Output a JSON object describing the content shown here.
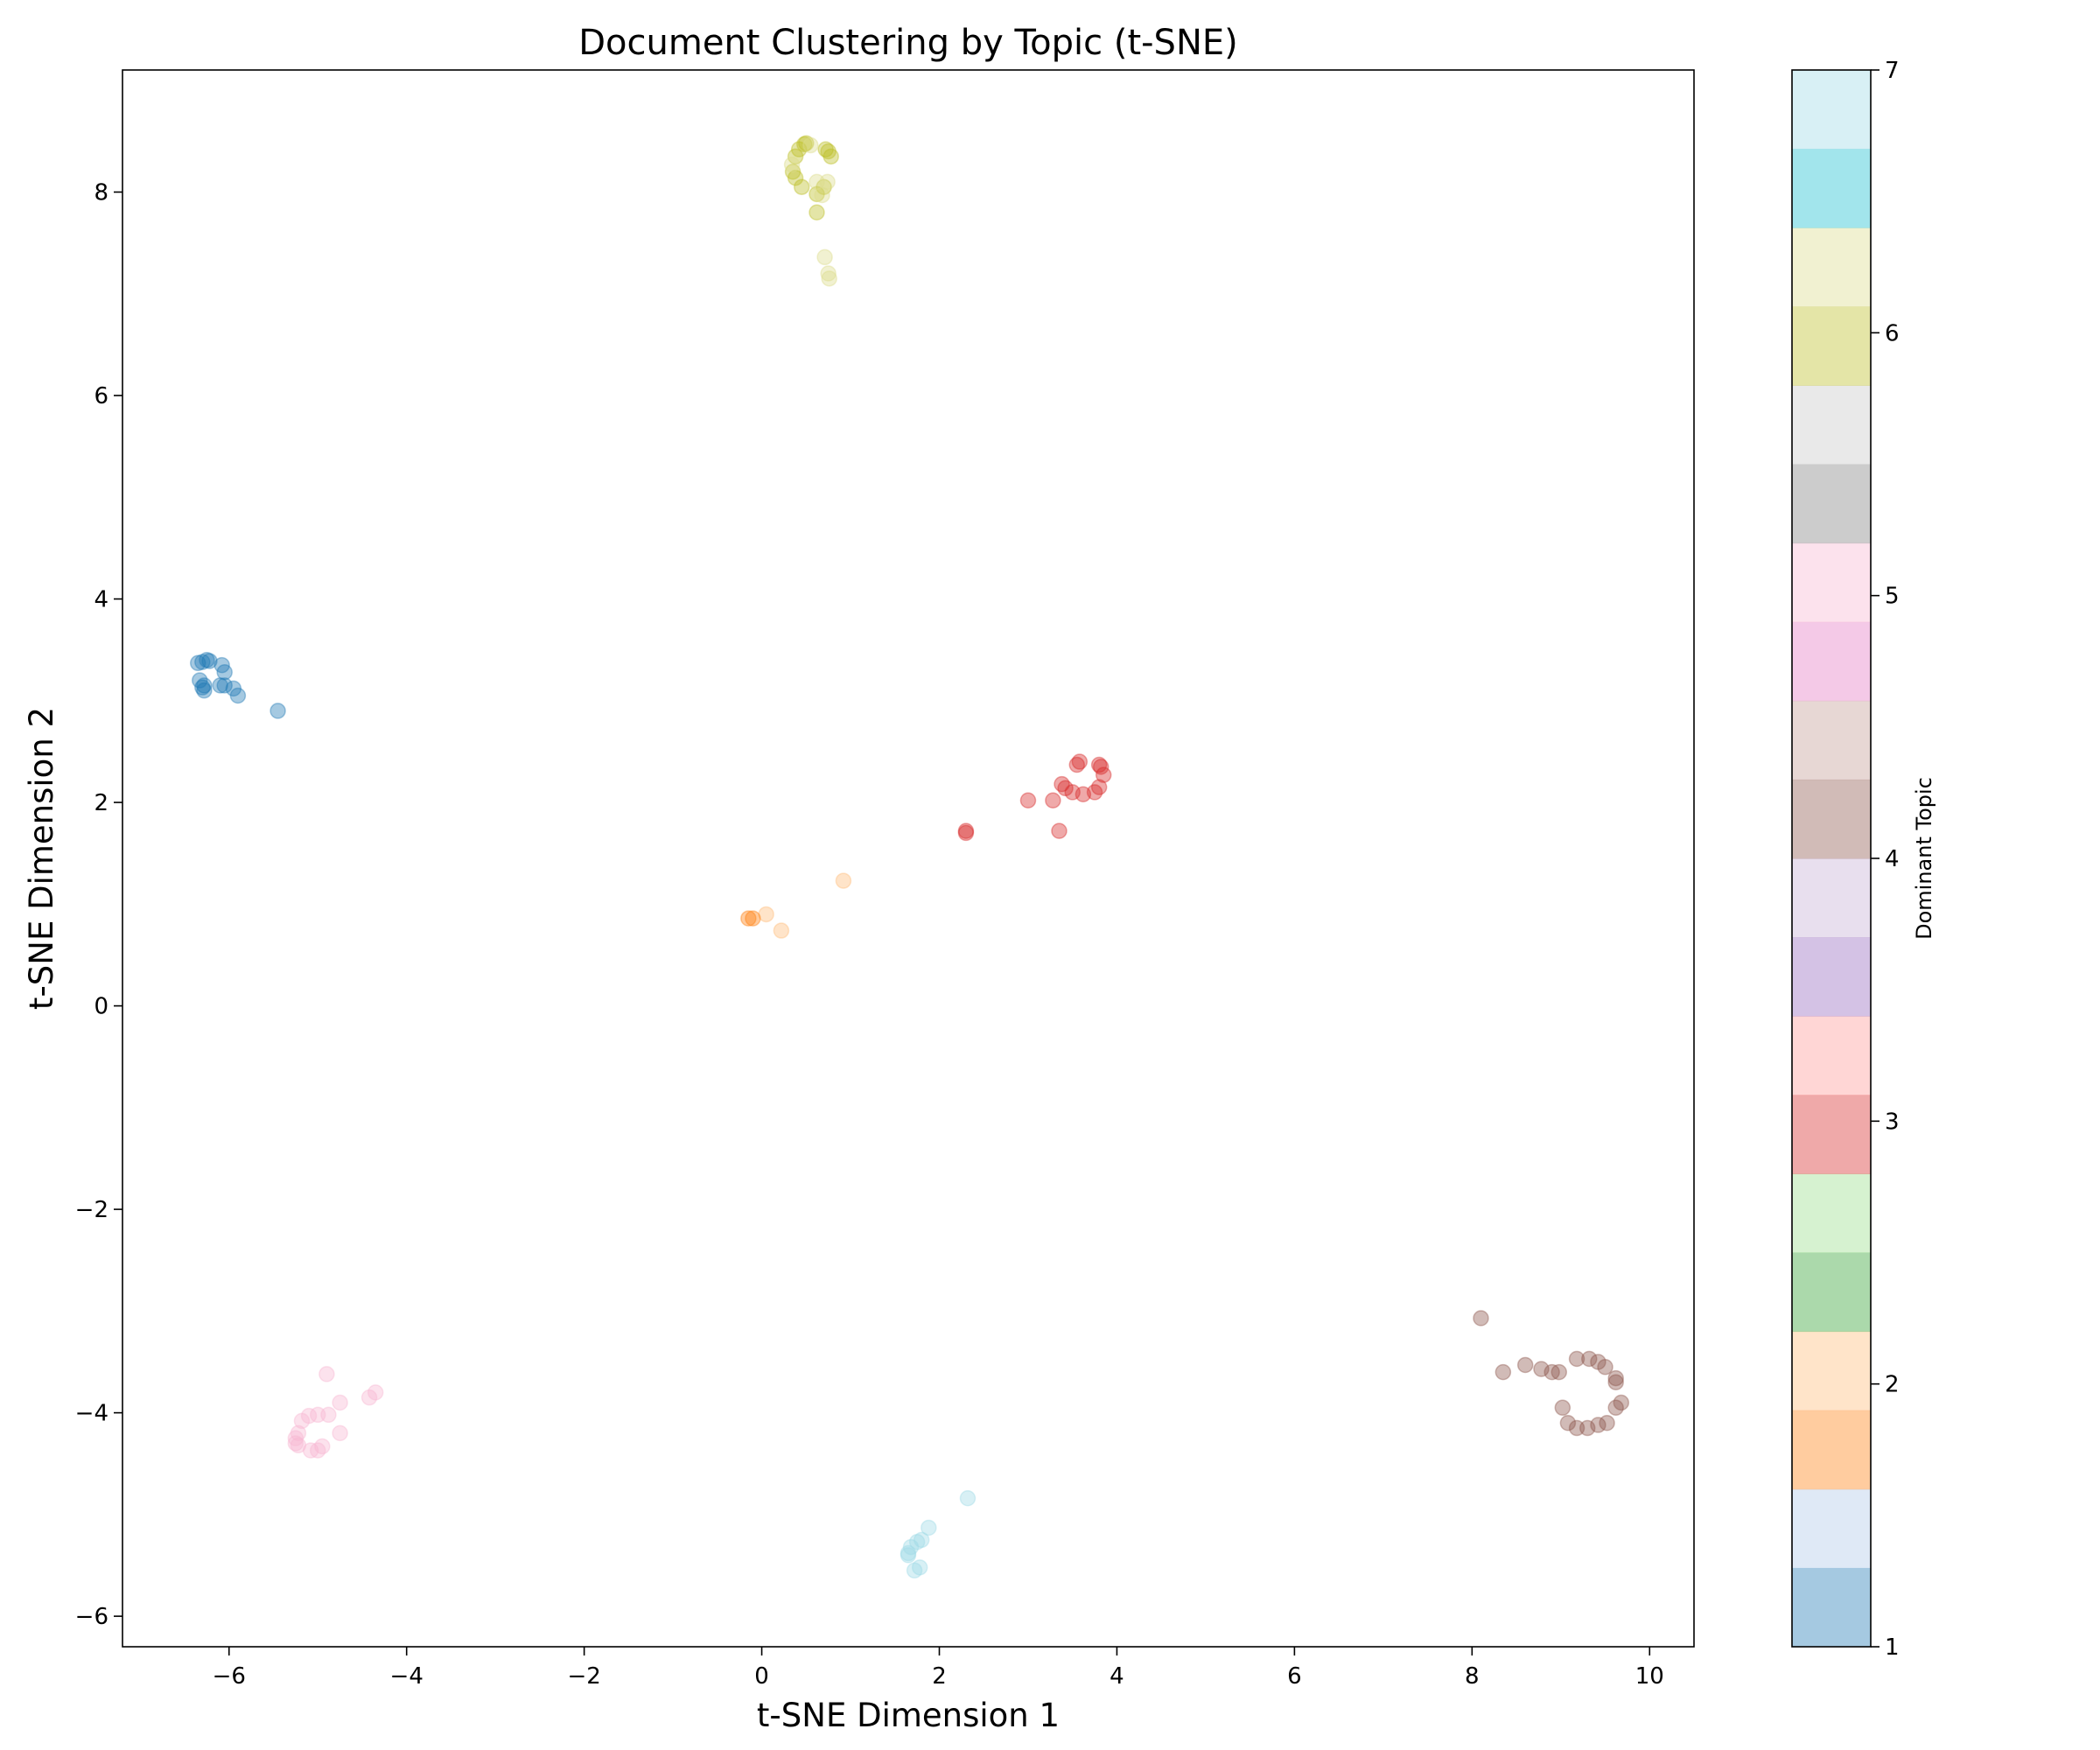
{
  "chart_data": {
    "type": "scatter",
    "title": "Document Clustering by Topic (t-SNE)",
    "xlabel": "t-SNE Dimension 1",
    "ylabel": "t-SNE Dimension 2",
    "xlim": [
      -7.2,
      10.5
    ],
    "ylim": [
      -6.3,
      9.2
    ],
    "x_ticks": [
      -6,
      -4,
      -2,
      0,
      2,
      4,
      6,
      8,
      10
    ],
    "y_ticks": [
      -6,
      -4,
      -2,
      0,
      2,
      4,
      6,
      8
    ],
    "x_tick_labels": [
      "−6",
      "−4",
      "−2",
      "0",
      "2",
      "4",
      "6",
      "8",
      "10"
    ],
    "y_tick_labels": [
      "−6",
      "−4",
      "−2",
      "0",
      "2",
      "4",
      "6",
      "8"
    ],
    "grid": false,
    "marker_alpha": 0.4,
    "colorbar": {
      "label": "Dominant Topic",
      "min": 1,
      "max": 7,
      "ticks": [
        1,
        2,
        3,
        4,
        5,
        6,
        7
      ],
      "tick_labels": [
        "1",
        "2",
        "3",
        "4",
        "5",
        "6",
        "7"
      ],
      "bands": [
        "#1f77b4",
        "#aec7e8",
        "#ff7f0e",
        "#ffbb78",
        "#2ca02c",
        "#98df8a",
        "#d62728",
        "#ff9896",
        "#9467bd",
        "#c5b0d5",
        "#8c564b",
        "#c49c94",
        "#e377c2",
        "#f7b6d2",
        "#7f7f7f",
        "#c7c7c7",
        "#bcbd22",
        "#dbdb8d",
        "#17becf",
        "#9edae5"
      ]
    },
    "series": [
      {
        "color": "#1f77b4",
        "x": [
          -6.35,
          -6.3,
          -6.25,
          -6.22,
          -6.33,
          -6.28,
          -6.08,
          -6.05,
          -6.1,
          -6.05,
          -5.95,
          -5.9,
          -6.3,
          -6.28,
          -5.45
        ],
        "y": [
          3.37,
          3.38,
          3.4,
          3.39,
          3.2,
          3.15,
          3.35,
          3.28,
          3.15,
          3.15,
          3.12,
          3.05,
          3.13,
          3.1,
          2.9
        ]
      },
      {
        "color": "#ffbb78",
        "x": [
          0.92,
          0.05,
          0.22
        ],
        "y": [
          1.23,
          0.9,
          0.74
        ]
      },
      {
        "color": "#ff7f0e",
        "x": [
          -0.15,
          -0.1
        ],
        "y": [
          0.86,
          0.86
        ]
      },
      {
        "color": "#d62728",
        "x": [
          3.58,
          3.55,
          3.8,
          3.82,
          3.85,
          3.8,
          3.75,
          3.62,
          3.5,
          3.42,
          3.38,
          3.35,
          3.28,
          3.0,
          2.3,
          2.3
        ],
        "y": [
          2.4,
          2.37,
          2.37,
          2.35,
          2.27,
          2.15,
          2.1,
          2.08,
          2.1,
          2.14,
          2.18,
          1.72,
          2.02,
          2.02,
          1.72,
          1.7
        ]
      },
      {
        "color": "#8c564b",
        "x": [
          8.1,
          8.35,
          8.6,
          8.78,
          8.9,
          8.98,
          9.18,
          9.32,
          9.42,
          9.5,
          9.62,
          9.62,
          9.68,
          9.62,
          9.52,
          9.42,
          9.3,
          9.18,
          9.08,
          9.02
        ],
        "y": [
          -3.07,
          -3.6,
          -3.53,
          -3.57,
          -3.6,
          -3.6,
          -3.47,
          -3.47,
          -3.5,
          -3.55,
          -3.66,
          -3.7,
          -3.9,
          -3.95,
          -4.1,
          -4.12,
          -4.15,
          -4.15,
          -4.1,
          -3.95
        ]
      },
      {
        "color": "#f7b6d2",
        "x": [
          -4.9,
          -4.35,
          -4.42,
          -4.75,
          -4.88,
          -5.0,
          -5.1,
          -5.18,
          -5.22,
          -5.25,
          -5.25,
          -5.22,
          -5.08,
          -5.0,
          -4.95,
          -4.75
        ],
        "y": [
          -3.62,
          -3.8,
          -3.85,
          -3.9,
          -4.02,
          -4.02,
          -4.03,
          -4.08,
          -4.2,
          -4.25,
          -4.3,
          -4.32,
          -4.37,
          -4.37,
          -4.33,
          -4.2
        ]
      },
      {
        "color": "#9edae5",
        "x": [
          2.32,
          1.88,
          1.8,
          1.75,
          1.68,
          1.65,
          1.65,
          1.78,
          1.72
        ],
        "y": [
          -4.84,
          -5.13,
          -5.25,
          -5.27,
          -5.32,
          -5.38,
          -5.4,
          -5.52,
          -5.55
        ]
      },
      {
        "color": "#bcbd22",
        "x": [
          0.48,
          0.5,
          0.42,
          0.38,
          0.35,
          0.38,
          0.45,
          0.62,
          0.7,
          0.72,
          0.75,
          0.78,
          0.62
        ],
        "y": [
          8.47,
          8.48,
          8.42,
          8.35,
          8.2,
          8.14,
          8.05,
          7.98,
          8.05,
          8.42,
          8.4,
          8.35,
          7.8
        ]
      },
      {
        "color": "#dbdb8d",
        "x": [
          0.55,
          0.62,
          0.68,
          0.74,
          0.75,
          0.76,
          0.71,
          0.34
        ],
        "y": [
          8.46,
          8.1,
          7.97,
          8.1,
          7.2,
          7.15,
          7.36,
          8.27
        ]
      }
    ]
  }
}
